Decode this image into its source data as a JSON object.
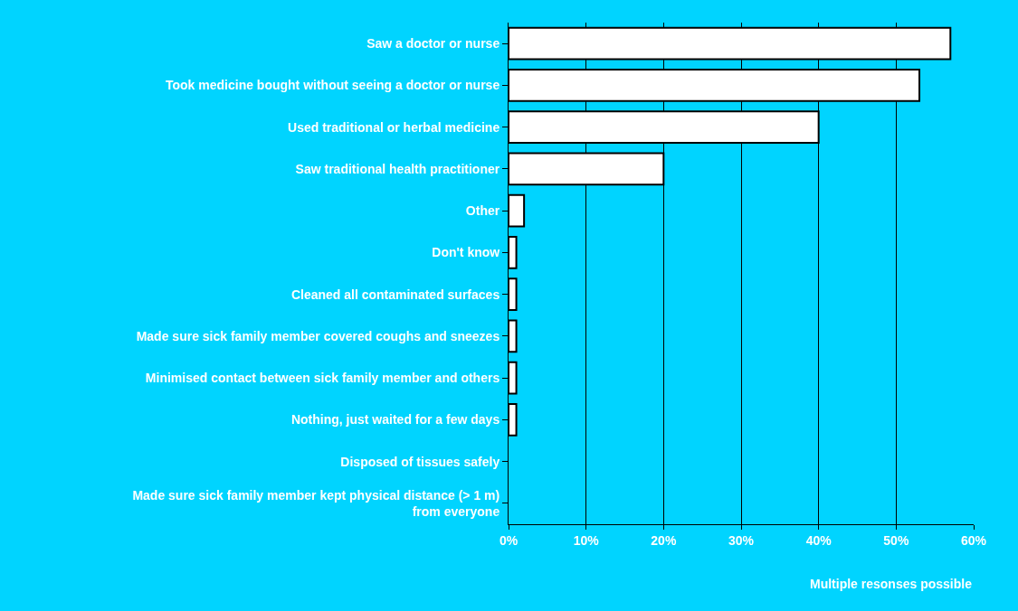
{
  "chart_data": {
    "type": "bar",
    "orientation": "horizontal",
    "categories": [
      "Saw a doctor or nurse",
      "Took medicine bought without seeing a doctor or nurse",
      "Used traditional or herbal medicine",
      "Saw traditional health practitioner",
      "Other",
      "Don't know",
      "Cleaned all contaminated surfaces",
      "Made sure sick family member covered coughs and sneezes",
      "Minimised contact between sick family member and others",
      "Nothing, just waited for a few days",
      "Disposed of tissues safely",
      "Made sure sick family member kept physical distance (> 1 m)\nfrom everyone"
    ],
    "values": [
      57,
      53,
      40,
      20,
      2,
      1,
      1,
      1,
      1,
      1,
      0,
      0
    ],
    "color": "#ffffff",
    "xlim": [
      0,
      60
    ],
    "xticks": [
      {
        "value": 0,
        "label": "0%"
      },
      {
        "value": 10,
        "label": "10%"
      },
      {
        "value": 20,
        "label": "20%"
      },
      {
        "value": 30,
        "label": "30%"
      },
      {
        "value": 40,
        "label": "40%"
      },
      {
        "value": 50,
        "label": "50%"
      },
      {
        "value": 60,
        "label": "60%"
      }
    ],
    "grid": "x",
    "legend": false,
    "annotations": [
      "Multiple resonses possible"
    ]
  }
}
